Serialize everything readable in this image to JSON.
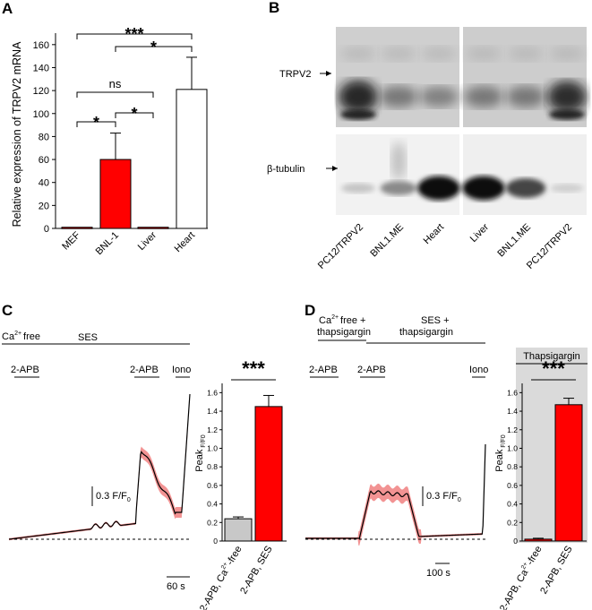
{
  "panels": {
    "a": "A",
    "b": "B",
    "c": "C",
    "d": "D"
  },
  "chart_data": [
    {
      "id": "A",
      "type": "bar",
      "categories": [
        "MEF",
        "BNL-1",
        "Liver",
        "Heart"
      ],
      "values": [
        1,
        60,
        1,
        121
      ],
      "errors": [
        1,
        23,
        1,
        28
      ],
      "colors": [
        "#e00000",
        "#ff0000",
        "#e00000",
        "#ffffff"
      ],
      "ylabel": "Relative expression of TRPV2 mRNA",
      "ylim": [
        0,
        170
      ],
      "yticks": [
        0,
        20,
        40,
        60,
        80,
        100,
        120,
        140,
        160
      ],
      "significance": [
        {
          "from": "MEF",
          "to": "Heart",
          "label": "***"
        },
        {
          "from": "BNL-1",
          "to": "Heart",
          "label": "*"
        },
        {
          "from": "MEF",
          "to": "Liver",
          "label": "ns"
        },
        {
          "from": "MEF",
          "to": "BNL-1",
          "label": "*"
        },
        {
          "from": "BNL-1",
          "to": "Liver",
          "label": "*"
        }
      ]
    },
    {
      "id": "C-inset",
      "type": "bar",
      "categories": [
        "2-APB, Ca2+-free",
        "2-APB, SES"
      ],
      "values": [
        0.24,
        1.45
      ],
      "errors": [
        0.02,
        0.12
      ],
      "colors": [
        "#c8c8c8",
        "#ff0000"
      ],
      "ylabel_main": "Peak",
      "ylabel_sub": "F/F0",
      "ylim": [
        0,
        1.7
      ],
      "yticks": [
        0,
        0.2,
        0.4,
        0.6,
        0.8,
        1.0,
        1.2,
        1.4,
        1.6
      ],
      "significance": "***"
    },
    {
      "id": "D-inset",
      "type": "bar",
      "categories": [
        "2-APB, Ca2+-free",
        "2-APB, SES"
      ],
      "values": [
        0.02,
        1.47
      ],
      "errors": [
        0.01,
        0.07
      ],
      "colors": [
        "#ff0000",
        "#ff0000"
      ],
      "ylabel_main": "Peak",
      "ylabel_sub": "F/F0",
      "ylim": [
        0,
        1.7
      ],
      "yticks": [
        0,
        0.2,
        0.4,
        0.6,
        0.8,
        1.0,
        1.2,
        1.4,
        1.6
      ],
      "significance": "***",
      "header": "Thapsigargin"
    }
  ],
  "blot": {
    "lanes": [
      "PC12/TRPV2",
      "BNL1.ME",
      "Heart",
      "Liver",
      "BNL1.ME",
      "PC12/TRPV2"
    ],
    "top_band_label": "TRPV2",
    "bottom_band_label": "β-tubulin",
    "top_intensity": [
      0.9,
      0.45,
      0.4,
      0.45,
      0.45,
      0.85
    ],
    "bottom_intensity": [
      0.15,
      0.4,
      0.95,
      0.95,
      0.7,
      0.1
    ]
  },
  "trace_c": {
    "condition_1": "Ca",
    "condition_1_sup": "2+",
    "condition_1_rest": "free",
    "condition_2": "SES",
    "stim_1": "2-APB",
    "stim_2": "2-APB",
    "stim_3": "Iono",
    "scale_y_value": "0.3",
    "scale_y_unit": "F/F",
    "scale_y_sub": "0",
    "scale_x": "60 s"
  },
  "trace_d": {
    "condition_1_line1": "Ca",
    "condition_1_sup": "2+",
    "condition_1_line1_rest": "free +",
    "condition_1_line2": "thapsigargin",
    "condition_2_line1": "SES +",
    "condition_2_line2": "thapsigargin",
    "stim_1": "2-APB",
    "stim_2": "2-APB",
    "stim_3": "Iono",
    "scale_y_value": "0.3",
    "scale_y_unit": "F/F",
    "scale_y_sub": "0",
    "scale_x": "100 s"
  },
  "xlabels": {
    "ca_free_main": "2-APB, Ca",
    "ca_free_sup": "2+",
    "ca_free_rest": "-free",
    "ses": "2-APB, SES"
  }
}
